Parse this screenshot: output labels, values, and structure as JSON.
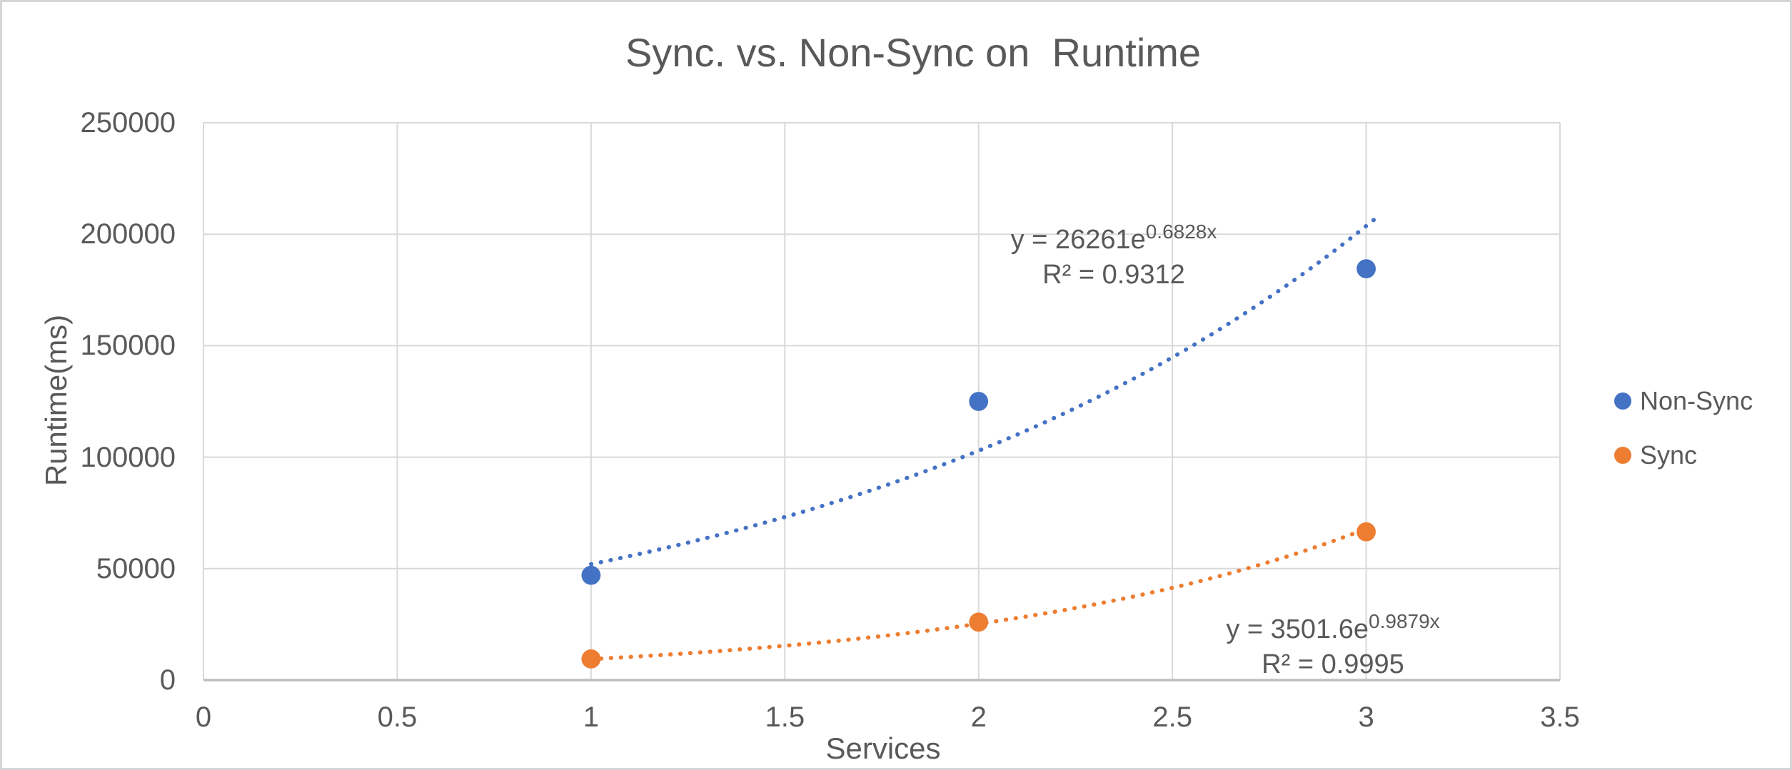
{
  "title": "Sync. vs. Non-Sync on  Runtime",
  "colors": {
    "non_sync": "#4472C4",
    "sync": "#ED7D31",
    "gridline": "#D9D9D9",
    "axis_line": "#BFBFBF",
    "text": "#595959"
  },
  "chart_data": {
    "type": "scatter",
    "title": "Sync. vs. Non-Sync on  Runtime",
    "xlabel": "Services",
    "ylabel": "Runtime(ms)",
    "xlim": [
      0,
      3.5
    ],
    "ylim": [
      0,
      250000
    ],
    "grid": true,
    "legend_position": "right",
    "x_ticks": [
      "0",
      "0.5",
      "1",
      "1.5",
      "2",
      "2.5",
      "3",
      "3.5"
    ],
    "y_ticks": [
      "0",
      "50000",
      "100000",
      "150000",
      "200000",
      "250000"
    ],
    "x": [
      1,
      2,
      3
    ],
    "series": [
      {
        "name": "Non-Sync",
        "color": "#4472C4",
        "values": [
          47000,
          125000,
          184500
        ],
        "trendline": {
          "type": "exponential",
          "a": 26261,
          "b": 0.6828,
          "x_start": 1,
          "x_end": 3.02,
          "equation_base": "y = 26261e",
          "equation_exponent": "0.6828x",
          "r_squared": "R² = 0.9312"
        }
      },
      {
        "name": "Sync",
        "color": "#ED7D31",
        "values": [
          9500,
          26000,
          66500
        ],
        "trendline": {
          "type": "exponential",
          "a": 3501.6,
          "b": 0.9879,
          "x_start": 1,
          "x_end": 3.0,
          "equation_base": "y = 3501.6e",
          "equation_exponent": "0.9879x",
          "r_squared": "R² = 0.9995"
        }
      }
    ]
  }
}
